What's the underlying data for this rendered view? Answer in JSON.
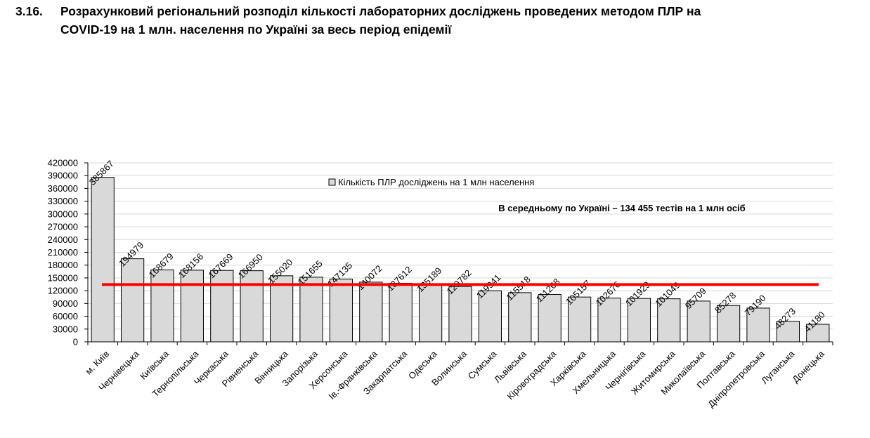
{
  "chart_data": {
    "type": "bar",
    "number": "3.16.",
    "title": [
      "Розрахунковий регіональний розподіл кількості лабораторних досліджень проведених методом ПЛР на",
      "COVID-19 на 1 млн. населення по Україні за весь період епідемії"
    ],
    "categories": [
      "м. Київ",
      "Чернівецька",
      "Київська",
      "Тернопільська",
      "Черкаська",
      "Рівненська",
      "Вінницька",
      "Запорізька",
      "Херсонська",
      "Ів.-Франківська",
      "Закарпатська",
      "Одеська",
      "Волинська",
      "Сумська",
      "Львівська",
      "Кіровоградська",
      "Харківська",
      "Хмельницька",
      "Чернігівська",
      "Житомирська",
      "Миколаївська",
      "Полтавська",
      "Дніпропетровська",
      "Луганська",
      "Донецька"
    ],
    "series": [
      {
        "name": "Кількість ПЛР досліджень на 1 млн населення",
        "color": "#d9d9d9",
        "values": [
          385867,
          194979,
          168679,
          168156,
          167669,
          166950,
          155020,
          151655,
          147135,
          140072,
          137612,
          135189,
          129782,
          119941,
          115518,
          111268,
          105157,
          102676,
          101929,
          101049,
          95709,
          85278,
          79190,
          48273,
          41180
        ]
      }
    ],
    "average_line": {
      "value": 134455,
      "color": "#ff0000",
      "label": "В середньому по Україні – 134 455 тестів на 1 млн осіб"
    },
    "ylim": [
      0,
      420000
    ],
    "yticks": [
      0,
      30000,
      60000,
      90000,
      120000,
      150000,
      180000,
      210000,
      240000,
      270000,
      300000,
      330000,
      360000,
      390000,
      420000
    ],
    "grid": true,
    "legend": "top"
  }
}
